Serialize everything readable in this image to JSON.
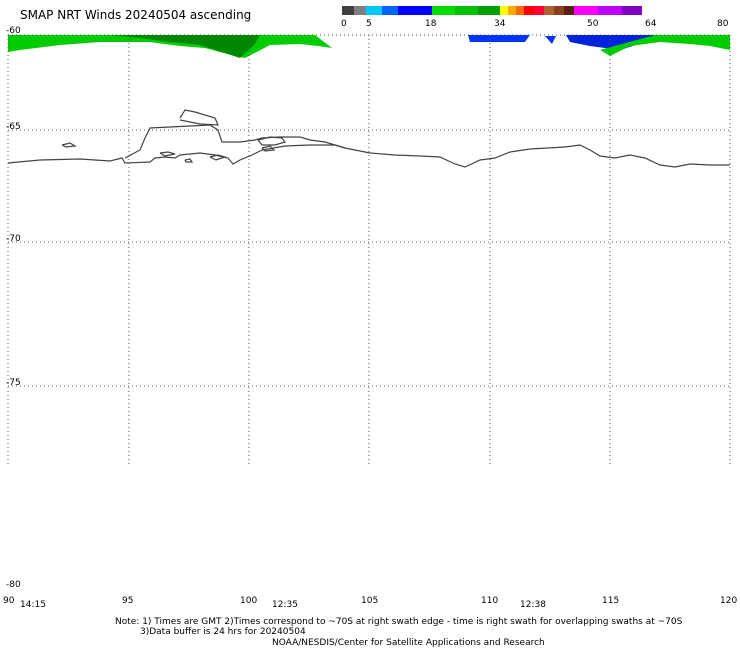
{
  "title": "SMAP NRT Winds 20240504 ascending",
  "legend": {
    "labels": [
      "0",
      "5",
      "18",
      "34",
      "50",
      "64",
      "80"
    ],
    "colors": [
      "#404040",
      "#7f7f7f",
      "#00c8ff",
      "#0064ff",
      "#0000ff",
      "#00dc00",
      "#00c000",
      "#00a000",
      "#ffff00",
      "#ffaa00",
      "#ff6a00",
      "#ff0000",
      "#ff0033",
      "#b06030",
      "#8a4020",
      "#5a2010",
      "#ff00ff",
      "#c000ff",
      "#8000c0"
    ]
  },
  "lat_labels": [
    "-60",
    "-65",
    "-70",
    "-75",
    "-80"
  ],
  "lon_labels": [
    "90",
    "95",
    "100",
    "105",
    "110",
    "115",
    "120"
  ],
  "times": [
    "14:15",
    "12:35",
    "12:38"
  ],
  "notes": {
    "line1": "Note: 1) Times are GMT 2)Times correspond to ~70S at right swath edge - time is right swath for overlapping swaths at ~70S",
    "line2": "3)Data buffer is 24 hrs for 20240504",
    "line3": "NOAA/NESDIS/Center for Satellite Applications and Research"
  }
}
